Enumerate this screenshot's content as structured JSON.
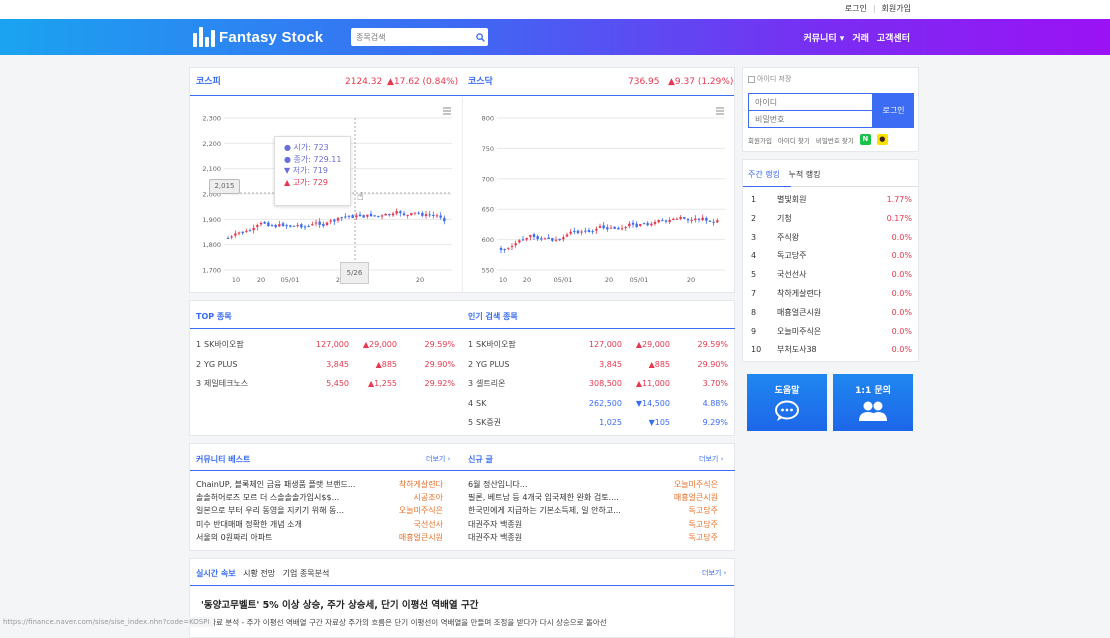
{
  "topbar": {
    "login": "로그인",
    "signup": "회원가입"
  },
  "header": {
    "title": "Fantasy Stock",
    "search_placeholder": "종목검색",
    "nav": [
      "커뮤니티",
      "거래",
      "고객센터"
    ]
  },
  "kospi": {
    "name": "코스피",
    "value": "2124.32",
    "change": "▲17.62 (0.84%)",
    "y_ticks": [
      "2,300",
      "2,200",
      "2,100",
      "2,000",
      "1,900",
      "1,800",
      "1,700"
    ],
    "x_ticks": [
      "10",
      "20",
      "05/01",
      "20",
      "20"
    ],
    "crosshair_y": "2,015",
    "crosshair_x": "5/26",
    "tooltip": [
      "● 시가: 723",
      "● 종가: 729.11",
      "▼ 저가: 719",
      "▲ 고가: 729"
    ]
  },
  "kosdaq": {
    "name": "코스닥",
    "value": "736.95",
    "change": "▲9.37 (1.29%)",
    "y_ticks": [
      "800",
      "750",
      "700",
      "650",
      "600",
      "550"
    ],
    "x_ticks": [
      "10",
      "20",
      "05/01",
      "20",
      "05/01",
      "20"
    ]
  },
  "top": {
    "title": "TOP 종목",
    "rows": [
      {
        "rank": "1",
        "name": "SK바이오팜",
        "price": "127,000",
        "chg": "▲29,000",
        "pct": "29.59%",
        "dir": "up"
      },
      {
        "rank": "2",
        "name": "YG PLUS",
        "price": "3,845",
        "chg": "▲885",
        "pct": "29.90%",
        "dir": "up"
      },
      {
        "rank": "3",
        "name": "제일테크노스",
        "price": "5,450",
        "chg": "▲1,255",
        "pct": "29.92%",
        "dir": "up"
      }
    ]
  },
  "popular": {
    "title": "인기 검색 종목",
    "rows": [
      {
        "rank": "1",
        "name": "SK바이오팜",
        "price": "127,000",
        "chg": "▲29,000",
        "pct": "29.59%",
        "dir": "up"
      },
      {
        "rank": "2",
        "name": "YG PLUS",
        "price": "3,845",
        "chg": "▲885",
        "pct": "29.90%",
        "dir": "up"
      },
      {
        "rank": "3",
        "name": "셀트리온",
        "price": "308,500",
        "chg": "▲11,000",
        "pct": "3.70%",
        "dir": "up"
      },
      {
        "rank": "4",
        "name": "SK",
        "price": "262,500",
        "chg": "▼14,500",
        "pct": "4.88%",
        "dir": "down"
      },
      {
        "rank": "5",
        "name": "SK증권",
        "price": "1,025",
        "chg": "▼105",
        "pct": "9.29%",
        "dir": "down"
      }
    ]
  },
  "community": {
    "title": "커뮤니티 베스트",
    "more": "더보기",
    "rows": [
      {
        "t": "ChainUP, 블록체인 금융 패생품 플랫 브랜드...",
        "a": "착하게살련다"
      },
      {
        "t": "솔솔허어로즈 모르 더 스솔솔솔가입시$$...",
        "a": "시공조아"
      },
      {
        "t": "일본으로 부터 우리 동영을 지키기 위해 동...",
        "a": "오늘미주식은"
      },
      {
        "t": "미수 반대매매 정확한 개념 소개",
        "a": "국선선사"
      },
      {
        "t": "서울의 0원짜리 아파트",
        "a": "매흉얼큰시원"
      }
    ]
  },
  "newposts": {
    "title": "신규 글",
    "more": "더보기",
    "rows": [
      {
        "t": "6월 정산입니다...",
        "a": "오늘미주식은"
      },
      {
        "t": "필론, 베트남 등 4개국 입국제한 완화 검토....",
        "a": "매흉얼큰시원"
      },
      {
        "t": "한국민에게 지급하는 기본소득제, 일 안하고...",
        "a": "독고당주"
      },
      {
        "t": "대권주자 백종원",
        "a": "독고당주"
      },
      {
        "t": "대권주자 백종원",
        "a": "독고당주"
      }
    ]
  },
  "news": {
    "tabs": [
      "실시간 속보",
      "시황 전망",
      "기업 종목분석"
    ],
    "more": "더보기",
    "headline": "'동양고무벨트' 5% 이상 상승, 주가 상승세, 단기 이평선 역배열 구간",
    "body": "◆ 자료 분석 - 주가 이평선 역배열 구간 자료상 주가의 흐름은 단기 이평선이 역배열을 만들며 조정을 받다가 다시 상승으로 돌아선"
  },
  "login": {
    "save_id": "아이디 저장",
    "id_placeholder": "아이디",
    "pw_placeholder": "비밀번호",
    "button": "로그인",
    "links": [
      "회원가입",
      "아이디 찾기",
      "비밀번호 찾기"
    ]
  },
  "ranking": {
    "tabs": [
      "주간 랭킹",
      "누적 랭킹"
    ],
    "rows": [
      {
        "rank": "1",
        "name": "별빛회원",
        "pct": "1.77%"
      },
      {
        "rank": "2",
        "name": "기청",
        "pct": "0.17%"
      },
      {
        "rank": "3",
        "name": "주식왕",
        "pct": "0.0%"
      },
      {
        "rank": "4",
        "name": "독고당주",
        "pct": "0.0%"
      },
      {
        "rank": "5",
        "name": "국선선사",
        "pct": "0.0%"
      },
      {
        "rank": "7",
        "name": "착하게살련다",
        "pct": "0.0%"
      },
      {
        "rank": "8",
        "name": "매흉얼큰시원",
        "pct": "0.0%"
      },
      {
        "rank": "9",
        "name": "오늘미주식은",
        "pct": "0.0%"
      },
      {
        "rank": "10",
        "name": "부처도사38",
        "pct": "0.0%"
      }
    ]
  },
  "help": {
    "label": "도움말"
  },
  "qna": {
    "label": "1:1 문의"
  },
  "status_url": "https://finance.naver.com/sise/sise_index.nhn?code=KOSPI",
  "colors": {
    "accent": "#3b6cf3",
    "up": "#e8384f",
    "down": "#3b6cf3"
  }
}
